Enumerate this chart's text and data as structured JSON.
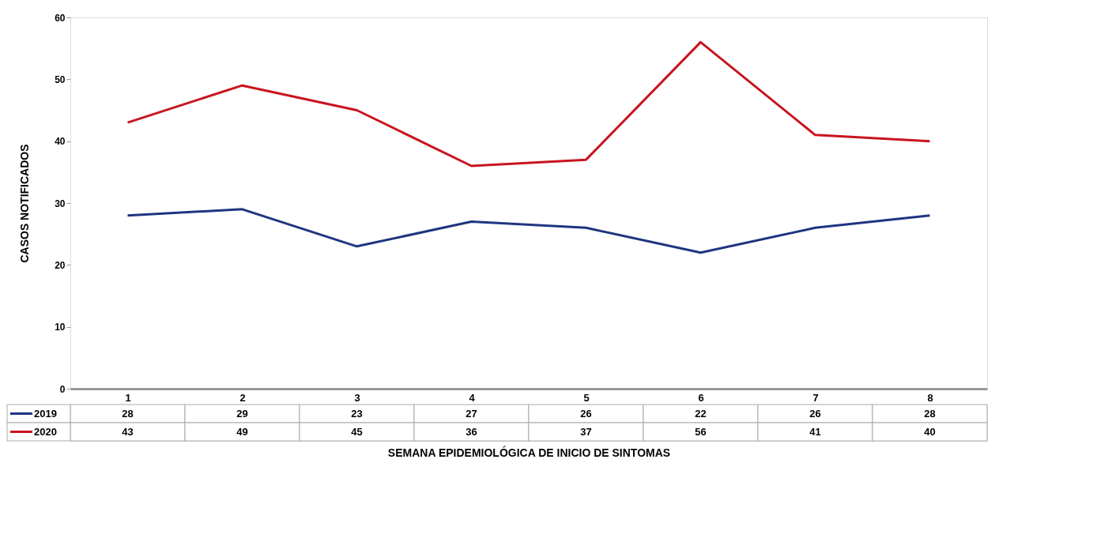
{
  "chart_data": {
    "type": "line",
    "xlabel": "SEMANA EPIDEMIOLÓGICA DE INICIO DE SINTOMAS",
    "ylabel": "CASOS NOTIFICADOS",
    "categories": [
      "1",
      "2",
      "3",
      "4",
      "5",
      "6",
      "7",
      "8"
    ],
    "series": [
      {
        "name": "2019",
        "color": "#1f3580",
        "values": [
          28,
          29,
          23,
          27,
          26,
          22,
          26,
          28
        ]
      },
      {
        "name": "2020",
        "color": "#c8141e",
        "values": [
          43,
          49,
          45,
          36,
          37,
          56,
          41,
          40
        ]
      }
    ],
    "ylim": [
      0,
      60
    ],
    "yticks": [
      0,
      10,
      20,
      30,
      40,
      50,
      60
    ],
    "grid": false,
    "legend": "bottom",
    "data_labels": true,
    "marker": "none",
    "line_style": "solid"
  }
}
